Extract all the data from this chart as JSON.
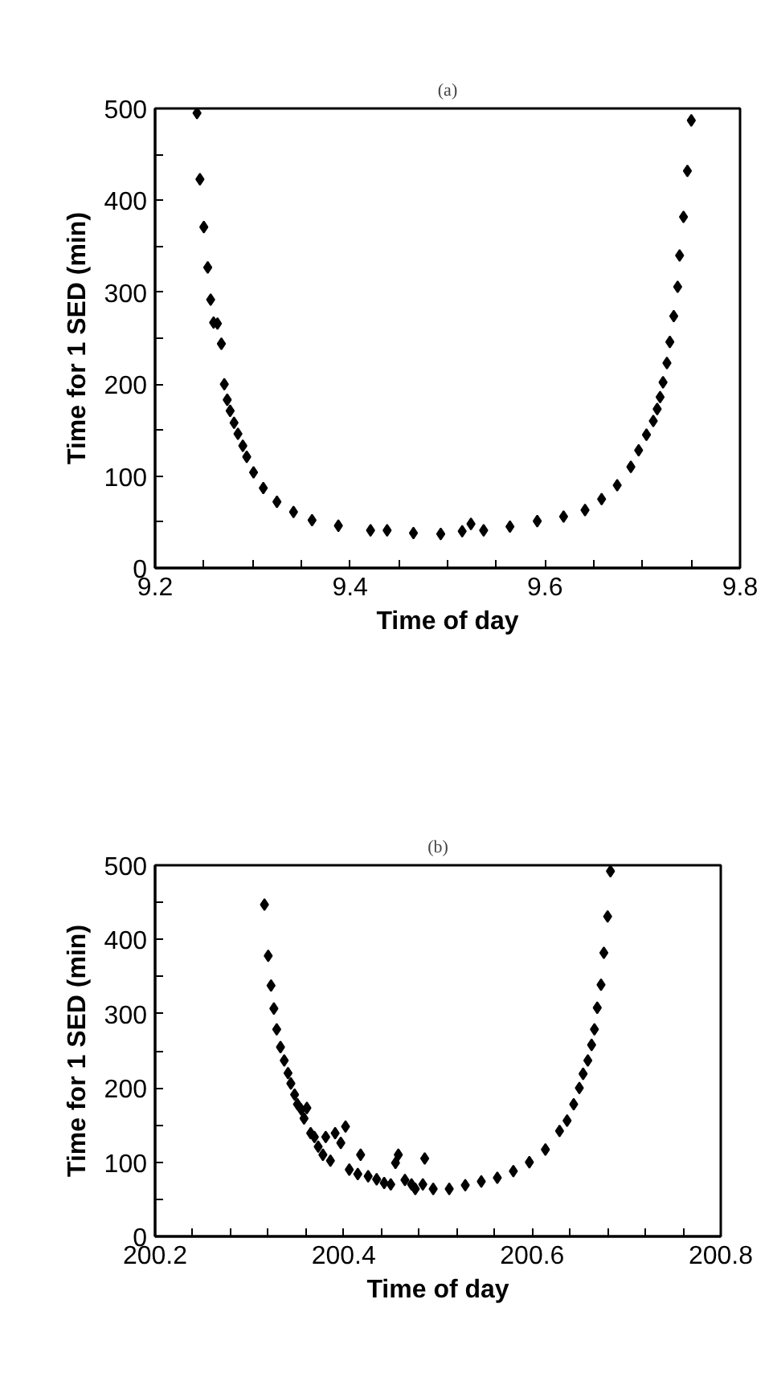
{
  "chart_data": [
    {
      "type": "scatter",
      "title": "(a)",
      "xlabel": "Time of day",
      "ylabel": "Time for 1 SED (min)",
      "marker": "diamond",
      "grid": false,
      "xlim": [
        9.2,
        9.8
      ],
      "xticks": [
        9.2,
        {
          "value": 9.25,
          "label": null
        },
        {
          "value": 9.3,
          "label": null
        },
        {
          "value": 9.35,
          "label": null
        },
        9.4,
        {
          "value": 9.45,
          "label": null
        },
        {
          "value": 9.5,
          "label": null
        },
        {
          "value": 9.55,
          "label": null
        },
        9.6,
        {
          "value": 9.65,
          "label": null
        },
        {
          "value": 9.7,
          "label": null
        },
        {
          "value": 9.75,
          "label": null
        },
        9.8
      ],
      "ylim": [
        0,
        500
      ],
      "yticks": [
        0,
        {
          "value": 50,
          "label": null
        },
        100,
        {
          "value": 150,
          "label": null
        },
        200,
        {
          "value": 250,
          "label": null
        },
        300,
        {
          "value": 350,
          "label": null
        },
        400,
        {
          "value": 450,
          "label": null
        },
        500
      ],
      "series": [
        {
          "color": "#000000",
          "x": [
            9.243,
            9.246,
            9.25,
            9.254,
            9.257,
            9.26,
            9.264,
            9.268,
            9.271,
            9.274,
            9.277,
            9.281,
            9.285,
            9.29,
            9.294,
            9.301,
            9.311,
            9.325,
            9.342,
            9.361,
            9.388,
            9.421,
            9.438,
            9.465,
            9.493,
            9.515,
            9.524,
            9.537,
            9.564,
            9.592,
            9.619,
            9.641,
            9.658,
            9.674,
            9.688,
            9.696,
            9.704,
            9.711,
            9.715,
            9.718,
            9.721,
            9.725,
            9.728,
            9.732,
            9.736,
            9.738,
            9.742,
            9.746,
            9.75
          ],
          "values": [
            495,
            423,
            371,
            327,
            292,
            267,
            266,
            244,
            200,
            183,
            171,
            158,
            146,
            133,
            121,
            104,
            87,
            72,
            61,
            52,
            46,
            41,
            41,
            38,
            37,
            40,
            48,
            41,
            45,
            51,
            56,
            63,
            75,
            90,
            110,
            128,
            145,
            160,
            173,
            186,
            202,
            223,
            246,
            274,
            306,
            340,
            382,
            432,
            487
          ]
        }
      ]
    },
    {
      "type": "scatter",
      "title": "(b)",
      "xlabel": "Time of day",
      "ylabel": "Time for 1 SED (min)",
      "marker": "diamond",
      "grid": false,
      "xlim": [
        200.2,
        200.8
      ],
      "xticks": [
        200.2,
        {
          "value": 200.24,
          "label": null
        },
        {
          "value": 200.28,
          "label": null
        },
        {
          "value": 200.32,
          "label": null
        },
        {
          "value": 200.36,
          "label": null
        },
        200.4,
        {
          "value": 200.44,
          "label": null
        },
        {
          "value": 200.48,
          "label": null
        },
        {
          "value": 200.52,
          "label": null
        },
        {
          "value": 200.56,
          "label": null
        },
        200.6,
        {
          "value": 200.64,
          "label": null
        },
        {
          "value": 200.68,
          "label": null
        },
        {
          "value": 200.72,
          "label": null
        },
        {
          "value": 200.76,
          "label": null
        },
        200.8
      ],
      "ylim": [
        0,
        500
      ],
      "yticks": [
        0,
        {
          "value": 50,
          "label": null
        },
        100,
        {
          "value": 150,
          "label": null
        },
        200,
        {
          "value": 250,
          "label": null
        },
        300,
        {
          "value": 350,
          "label": null
        },
        400,
        {
          "value": 450,
          "label": null
        },
        500
      ],
      "series": [
        {
          "color": "#000000",
          "x": [
            200.316,
            200.32,
            200.323,
            200.326,
            200.329,
            200.333,
            200.337,
            200.341,
            200.344,
            200.348,
            200.351,
            200.355,
            200.361,
            200.358,
            200.365,
            200.369,
            200.373,
            200.381,
            200.378,
            200.386,
            200.391,
            200.397,
            200.402,
            200.406,
            200.418,
            200.415,
            200.426,
            200.435,
            200.443,
            200.45,
            200.458,
            200.455,
            200.465,
            200.472,
            200.476,
            200.486,
            200.484,
            200.495,
            200.512,
            200.529,
            200.546,
            200.563,
            200.58,
            200.597,
            200.614,
            200.629,
            200.637,
            200.644,
            200.65,
            200.654,
            200.659,
            200.663,
            200.666,
            200.669,
            200.673,
            200.676,
            200.68,
            200.683
          ],
          "values": [
            447,
            378,
            338,
            307,
            279,
            255,
            237,
            220,
            206,
            191,
            178,
            171,
            173,
            159,
            139,
            134,
            121,
            134,
            110,
            102,
            139,
            126,
            148,
            90,
            110,
            84,
            81,
            77,
            72,
            70,
            110,
            99,
            76,
            70,
            64,
            105,
            70,
            64,
            64,
            69,
            74,
            79,
            88,
            100,
            117,
            142,
            156,
            178,
            200,
            219,
            237,
            258,
            279,
            308,
            339,
            382,
            431,
            492
          ]
        }
      ]
    }
  ]
}
